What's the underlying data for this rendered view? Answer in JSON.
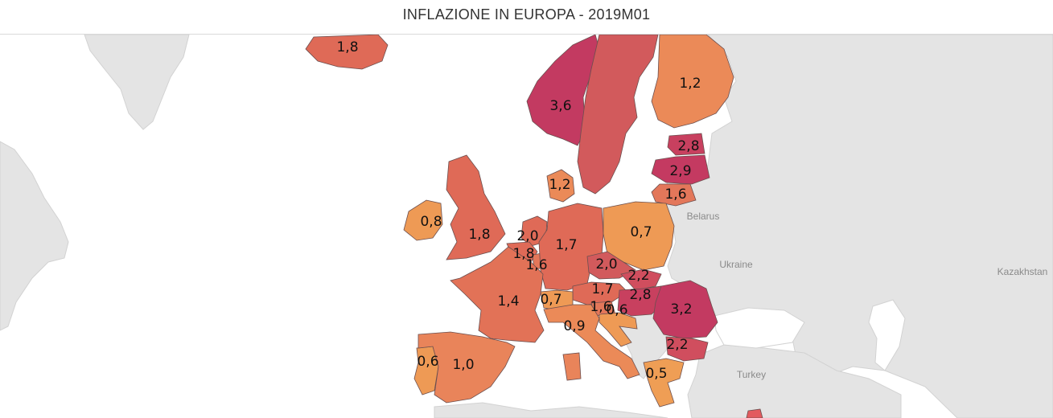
{
  "title": "INFLAZIONE IN EUROPA - 2019M01",
  "colors": {
    "background_land": "#e4e4e4",
    "sea": "#ffffff",
    "scale_low": "#ee9a55",
    "scale_mid": "#df6a57",
    "scale_high": "#c33a61",
    "border": "#5a4a4a"
  },
  "place_labels": {
    "belarus": "Belarus",
    "ukraine": "Ukraine",
    "kazakhstan": "Kazakhstan",
    "turkey": "Turkey"
  },
  "chart_data": {
    "type": "choropleth",
    "title": "INFLAZIONE IN EUROPA - 2019M01",
    "regions": [
      {
        "region": "Iceland",
        "value": "1,8"
      },
      {
        "region": "Norway",
        "value": "3,6"
      },
      {
        "region": "Sweden",
        "value": ""
      },
      {
        "region": "Finland",
        "value": "1,2"
      },
      {
        "region": "Estonia",
        "value": "2,8"
      },
      {
        "region": "Latvia",
        "value": "2,9"
      },
      {
        "region": "Lithuania",
        "value": "1,6"
      },
      {
        "region": "Denmark",
        "value": "1,2"
      },
      {
        "region": "Ireland",
        "value": "0,8"
      },
      {
        "region": "United Kingdom",
        "value": "1,8"
      },
      {
        "region": "Netherlands",
        "value": "2,0"
      },
      {
        "region": "Belgium",
        "value": "1,8"
      },
      {
        "region": "Luxembourg",
        "value": "1,6"
      },
      {
        "region": "Germany",
        "value": "1,7"
      },
      {
        "region": "Poland",
        "value": "0,7"
      },
      {
        "region": "Czechia",
        "value": "2,0"
      },
      {
        "region": "Slovakia",
        "value": "2,2"
      },
      {
        "region": "Austria",
        "value": "1,7"
      },
      {
        "region": "Hungary",
        "value": "2,8"
      },
      {
        "region": "Slovenia",
        "value": "1,6"
      },
      {
        "region": "Croatia",
        "value": "0,6"
      },
      {
        "region": "Romania",
        "value": "3,2"
      },
      {
        "region": "Bulgaria",
        "value": "2,2"
      },
      {
        "region": "Greece",
        "value": "0,5"
      },
      {
        "region": "France",
        "value": "1,4"
      },
      {
        "region": "Switzerland",
        "value": "0,7"
      },
      {
        "region": "Italy",
        "value": "0,9"
      },
      {
        "region": "Portugal",
        "value": "0,6"
      },
      {
        "region": "Spain",
        "value": "1,0"
      }
    ]
  }
}
